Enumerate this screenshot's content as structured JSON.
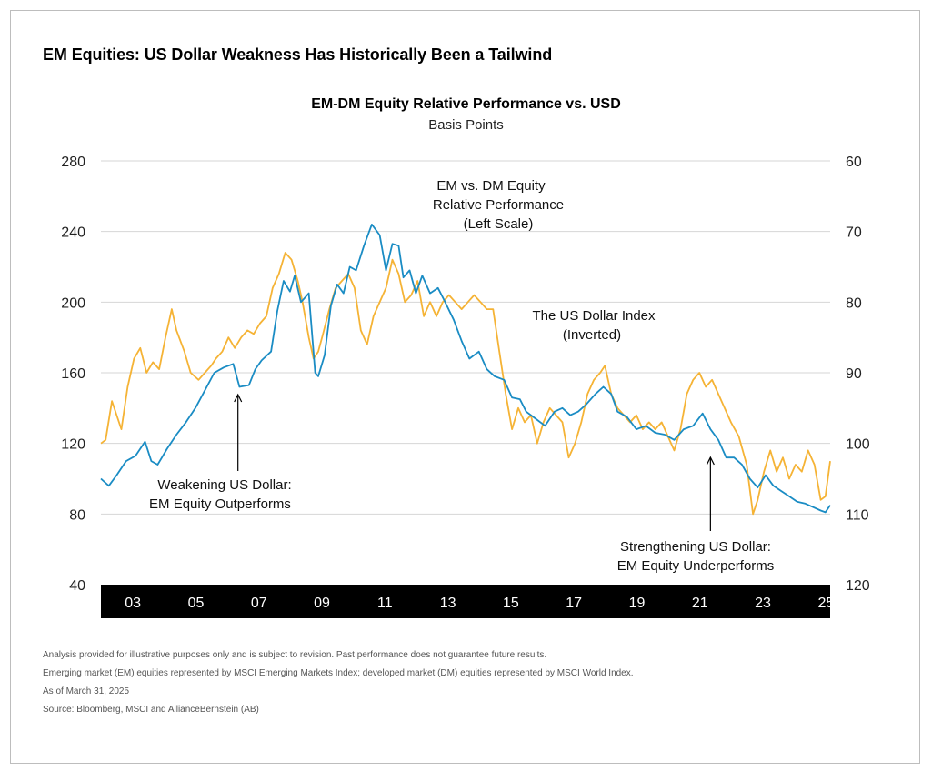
{
  "headline": "EM Equities: US Dollar Weakness Has Historically Been a Tailwind",
  "notes": [
    "Analysis provided for illustrative purposes only and is subject to revision. Past performance does not guarantee future results.",
    "Emerging market (EM) equities represented by MSCI Emerging Markets Index; developed market (DM) equities represented by MSCI World Index.",
    "As of March 31, 2025",
    "Source: Bloomberg, MSCI and  AllianceBernstein (AB)"
  ],
  "colors": {
    "em_dm_line": "#1a8cc4",
    "usd_line": "#f5b335",
    "axis_band": "#000000",
    "grid": "#d6d6d6"
  },
  "chart_data": {
    "type": "line",
    "title": "EM-DM Equity Relative Performance vs. USD",
    "subtitle": "Basis Points",
    "grid": true,
    "x_range": [
      2002.1,
      2025.25
    ],
    "x_ticks": [
      {
        "value": 2003,
        "label": "03"
      },
      {
        "value": 2005,
        "label": "05"
      },
      {
        "value": 2007,
        "label": "07"
      },
      {
        "value": 2009,
        "label": "09"
      },
      {
        "value": 2011,
        "label": "11"
      },
      {
        "value": 2013,
        "label": "13"
      },
      {
        "value": 2015,
        "label": "15"
      },
      {
        "value": 2017,
        "label": "17"
      },
      {
        "value": 2019,
        "label": "19"
      },
      {
        "value": 2021,
        "label": "21"
      },
      {
        "value": 2023,
        "label": "23"
      },
      {
        "value": 2025,
        "label": "25"
      }
    ],
    "y_left": {
      "ylim": [
        40,
        280
      ],
      "ticks": [
        40,
        80,
        120,
        160,
        200,
        240,
        280
      ]
    },
    "y_right": {
      "ylim": [
        120,
        60
      ],
      "inverted": true,
      "ticks": [
        120,
        110,
        100,
        90,
        80,
        70,
        60
      ]
    },
    "series": [
      {
        "name": "EM vs. DM Equity Relative Performance",
        "axis": "left",
        "color": "#1a8cc4",
        "points": [
          [
            2002.1,
            100
          ],
          [
            2002.35,
            96
          ],
          [
            2002.6,
            102
          ],
          [
            2002.9,
            110
          ],
          [
            2003.2,
            113
          ],
          [
            2003.5,
            121
          ],
          [
            2003.7,
            110
          ],
          [
            2003.9,
            108
          ],
          [
            2004.2,
            117
          ],
          [
            2004.5,
            125
          ],
          [
            2004.8,
            132
          ],
          [
            2005.1,
            140
          ],
          [
            2005.4,
            150
          ],
          [
            2005.7,
            160
          ],
          [
            2006.0,
            163
          ],
          [
            2006.3,
            165
          ],
          [
            2006.5,
            152
          ],
          [
            2006.8,
            153
          ],
          [
            2007.0,
            162
          ],
          [
            2007.2,
            167
          ],
          [
            2007.5,
            172
          ],
          [
            2007.7,
            195
          ],
          [
            2007.9,
            212
          ],
          [
            2008.1,
            206
          ],
          [
            2008.25,
            215
          ],
          [
            2008.45,
            200
          ],
          [
            2008.7,
            205
          ],
          [
            2008.9,
            160
          ],
          [
            2009.0,
            158
          ],
          [
            2009.2,
            170
          ],
          [
            2009.4,
            198
          ],
          [
            2009.6,
            210
          ],
          [
            2009.8,
            205
          ],
          [
            2010.0,
            220
          ],
          [
            2010.2,
            218
          ],
          [
            2010.45,
            232
          ],
          [
            2010.7,
            244
          ],
          [
            2010.95,
            238
          ],
          [
            2011.15,
            218
          ],
          [
            2011.35,
            233
          ],
          [
            2011.55,
            232
          ],
          [
            2011.7,
            214
          ],
          [
            2011.9,
            218
          ],
          [
            2012.1,
            205
          ],
          [
            2012.3,
            215
          ],
          [
            2012.55,
            205
          ],
          [
            2012.8,
            208
          ],
          [
            2013.0,
            201
          ],
          [
            2013.3,
            190
          ],
          [
            2013.55,
            178
          ],
          [
            2013.8,
            168
          ],
          [
            2014.1,
            172
          ],
          [
            2014.35,
            162
          ],
          [
            2014.6,
            158
          ],
          [
            2014.9,
            156
          ],
          [
            2015.15,
            146
          ],
          [
            2015.4,
            145
          ],
          [
            2015.6,
            138
          ],
          [
            2015.9,
            134
          ],
          [
            2016.2,
            130
          ],
          [
            2016.5,
            138
          ],
          [
            2016.75,
            140
          ],
          [
            2017.0,
            136
          ],
          [
            2017.25,
            138
          ],
          [
            2017.5,
            142
          ],
          [
            2017.8,
            148
          ],
          [
            2018.05,
            152
          ],
          [
            2018.3,
            148
          ],
          [
            2018.5,
            138
          ],
          [
            2018.8,
            135
          ],
          [
            2019.1,
            128
          ],
          [
            2019.4,
            130
          ],
          [
            2019.7,
            126
          ],
          [
            2020.0,
            125
          ],
          [
            2020.3,
            122
          ],
          [
            2020.6,
            128
          ],
          [
            2020.9,
            130
          ],
          [
            2021.2,
            137
          ],
          [
            2021.45,
            128
          ],
          [
            2021.7,
            122
          ],
          [
            2021.95,
            112
          ],
          [
            2022.2,
            112
          ],
          [
            2022.45,
            108
          ],
          [
            2022.7,
            100
          ],
          [
            2022.95,
            95
          ],
          [
            2023.2,
            102
          ],
          [
            2023.45,
            96
          ],
          [
            2023.7,
            93
          ],
          [
            2023.95,
            90
          ],
          [
            2024.2,
            87
          ],
          [
            2024.45,
            86
          ],
          [
            2024.7,
            84
          ],
          [
            2024.95,
            82
          ],
          [
            2025.1,
            81
          ],
          [
            2025.25,
            85
          ]
        ]
      },
      {
        "name": "The US Dollar Index",
        "axis": "right",
        "color": "#f5b335",
        "points": [
          [
            2002.1,
            100
          ],
          [
            2002.25,
            99.5
          ],
          [
            2002.45,
            94
          ],
          [
            2002.6,
            96
          ],
          [
            2002.75,
            98
          ],
          [
            2002.95,
            92
          ],
          [
            2003.15,
            88
          ],
          [
            2003.35,
            86.5
          ],
          [
            2003.55,
            90
          ],
          [
            2003.75,
            88.5
          ],
          [
            2003.95,
            89.5
          ],
          [
            2004.15,
            85
          ],
          [
            2004.35,
            81
          ],
          [
            2004.5,
            84
          ],
          [
            2004.75,
            87
          ],
          [
            2004.95,
            90
          ],
          [
            2005.2,
            91
          ],
          [
            2005.4,
            90
          ],
          [
            2005.6,
            89
          ],
          [
            2005.75,
            88
          ],
          [
            2005.95,
            87
          ],
          [
            2006.15,
            85
          ],
          [
            2006.35,
            86.5
          ],
          [
            2006.55,
            85
          ],
          [
            2006.75,
            84
          ],
          [
            2006.95,
            84.5
          ],
          [
            2007.15,
            83
          ],
          [
            2007.35,
            82
          ],
          [
            2007.55,
            78
          ],
          [
            2007.75,
            76
          ],
          [
            2007.95,
            73
          ],
          [
            2008.15,
            74
          ],
          [
            2008.35,
            77
          ],
          [
            2008.5,
            80
          ],
          [
            2008.7,
            85
          ],
          [
            2008.85,
            88
          ],
          [
            2009.0,
            87
          ],
          [
            2009.15,
            84.5
          ],
          [
            2009.35,
            81
          ],
          [
            2009.55,
            78
          ],
          [
            2009.75,
            77
          ],
          [
            2009.95,
            76
          ],
          [
            2010.15,
            78
          ],
          [
            2010.35,
            84
          ],
          [
            2010.55,
            86
          ],
          [
            2010.75,
            82
          ],
          [
            2010.95,
            80
          ],
          [
            2011.15,
            78
          ],
          [
            2011.35,
            74
          ],
          [
            2011.55,
            76
          ],
          [
            2011.75,
            80
          ],
          [
            2011.95,
            79
          ],
          [
            2012.15,
            77
          ],
          [
            2012.35,
            82
          ],
          [
            2012.55,
            80
          ],
          [
            2012.75,
            82
          ],
          [
            2012.95,
            80
          ],
          [
            2013.15,
            79
          ],
          [
            2013.35,
            80
          ],
          [
            2013.55,
            81
          ],
          [
            2013.75,
            80
          ],
          [
            2013.95,
            79
          ],
          [
            2014.15,
            80
          ],
          [
            2014.35,
            81
          ],
          [
            2014.55,
            81
          ],
          [
            2014.75,
            87
          ],
          [
            2014.95,
            93
          ],
          [
            2015.15,
            98
          ],
          [
            2015.35,
            95
          ],
          [
            2015.55,
            97
          ],
          [
            2015.75,
            96
          ],
          [
            2015.95,
            100
          ],
          [
            2016.15,
            97
          ],
          [
            2016.35,
            95
          ],
          [
            2016.55,
            96
          ],
          [
            2016.75,
            97
          ],
          [
            2016.95,
            102
          ],
          [
            2017.15,
            100
          ],
          [
            2017.35,
            97
          ],
          [
            2017.55,
            93
          ],
          [
            2017.75,
            91
          ],
          [
            2017.95,
            90
          ],
          [
            2018.1,
            89
          ],
          [
            2018.3,
            93
          ],
          [
            2018.5,
            95
          ],
          [
            2018.7,
            96
          ],
          [
            2018.9,
            97
          ],
          [
            2019.1,
            96
          ],
          [
            2019.3,
            98
          ],
          [
            2019.5,
            97
          ],
          [
            2019.7,
            98
          ],
          [
            2019.9,
            97
          ],
          [
            2020.1,
            99
          ],
          [
            2020.3,
            101
          ],
          [
            2020.5,
            98
          ],
          [
            2020.7,
            93
          ],
          [
            2020.9,
            91
          ],
          [
            2021.1,
            90
          ],
          [
            2021.3,
            92
          ],
          [
            2021.5,
            91
          ],
          [
            2021.7,
            93
          ],
          [
            2021.9,
            95
          ],
          [
            2022.1,
            97
          ],
          [
            2022.35,
            99
          ],
          [
            2022.6,
            103
          ],
          [
            2022.8,
            110
          ],
          [
            2022.95,
            108
          ],
          [
            2023.15,
            104
          ],
          [
            2023.35,
            101
          ],
          [
            2023.55,
            104
          ],
          [
            2023.75,
            102
          ],
          [
            2023.95,
            105
          ],
          [
            2024.15,
            103
          ],
          [
            2024.35,
            104
          ],
          [
            2024.55,
            101
          ],
          [
            2024.75,
            103
          ],
          [
            2024.95,
            108
          ],
          [
            2025.1,
            107.5
          ],
          [
            2025.25,
            102.5
          ]
        ]
      }
    ],
    "annotations": [
      {
        "lines": [
          "EM vs. DM Equity",
          "Relative Performance",
          "(Left Scale)"
        ],
        "pointer_x": 2011.15
      },
      {
        "lines": [
          "The US Dollar Index",
          "(Inverted)"
        ]
      },
      {
        "lines": [
          "Weakening US Dollar:",
          "EM Equity Outperforms"
        ],
        "pointer_x": 2006.45,
        "direction": "up"
      },
      {
        "lines": [
          "Strengthening US Dollar:",
          "EM Equity Underperforms"
        ],
        "pointer_x": 2021.45,
        "direction": "up"
      }
    ]
  }
}
